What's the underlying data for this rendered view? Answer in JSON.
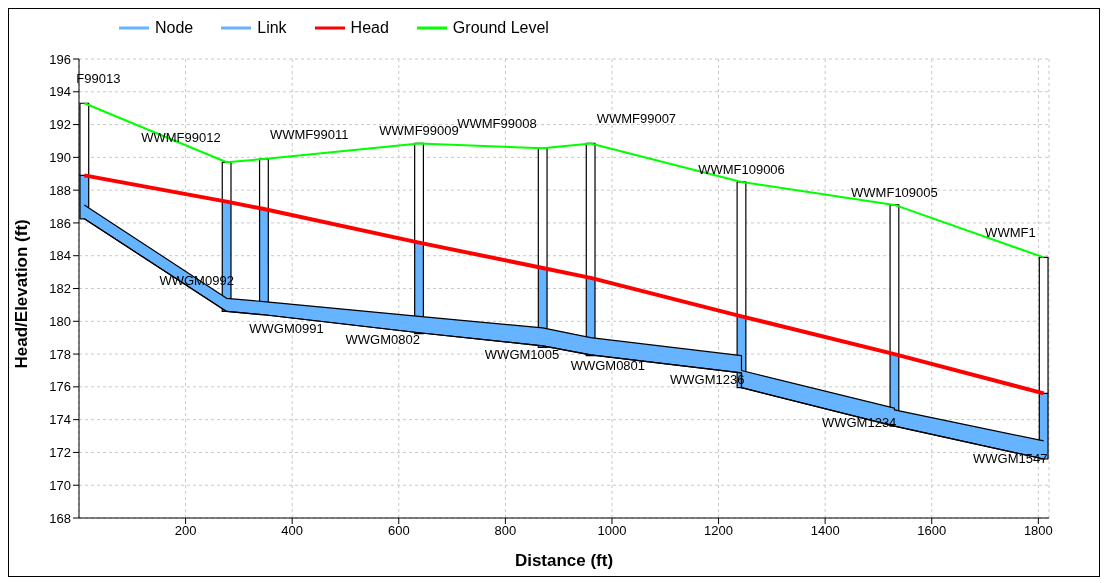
{
  "chart_data": {
    "type": "line",
    "xlabel": "Distance (ft)",
    "ylabel": "Head/Elevation (ft)",
    "xlim": [
      0,
      1820
    ],
    "xticks": [
      200,
      400,
      600,
      800,
      1000,
      1200,
      1400,
      1600,
      1800
    ],
    "ylim": [
      168,
      196
    ],
    "yticks": [
      168,
      170,
      172,
      174,
      176,
      178,
      180,
      182,
      184,
      186,
      188,
      190,
      192,
      194,
      196
    ],
    "grid": true,
    "legend": "top left",
    "line_style": "solid",
    "marker": "none",
    "series": [
      {
        "name": "Node",
        "type": "bar",
        "color": "#66b3ff",
        "x": [
          10,
          277,
          347,
          638,
          870,
          960,
          1243,
          1530,
          1810
        ],
        "base": [
          186.25,
          180.6,
          180.4,
          179.25,
          178.4,
          177.9,
          175.95,
          173.6,
          171.6
        ],
        "values": [
          2.65,
          6.7,
          6.45,
          5.55,
          4.85,
          4.75,
          4.35,
          4.4,
          4.0
        ]
      },
      {
        "type": "bar",
        "color": "#ffffff",
        "x": [
          10,
          277,
          347,
          638,
          870,
          960,
          1243,
          1530,
          1810
        ],
        "base": [
          188.9,
          187.3,
          186.85,
          184.8,
          183.25,
          182.65,
          180.3,
          178.0,
          175.6
        ],
        "values": [
          4.4,
          2.4,
          3.05,
          6.05,
          7.3,
          8.2,
          8.2,
          9.1,
          8.3
        ]
      },
      {
        "name": "Link",
        "type": "area",
        "color": "#66b3ff",
        "x": [
          10,
          277,
          277,
          347,
          347,
          638,
          638,
          870,
          870,
          960,
          960,
          1243,
          1243,
          1530,
          1530,
          1810
        ],
        "values": [
          187.1,
          181.4,
          181.4,
          181.2,
          181.2,
          180.3,
          180.3,
          179.6,
          179.6,
          179.0,
          179.0,
          177.9,
          177.0,
          174.7,
          174.6,
          172.7
        ]
      },
      {
        "type": "line",
        "color": "#000000",
        "x": [
          10,
          277,
          277,
          347,
          347,
          638,
          638,
          870,
          870,
          960,
          960,
          1243,
          1243,
          1530,
          1530,
          1810
        ],
        "values": [
          186.25,
          180.6,
          180.6,
          180.4,
          180.4,
          179.3,
          179.3,
          178.5,
          178.5,
          177.95,
          177.95,
          176.85,
          175.95,
          173.6,
          173.6,
          171.6
        ]
      },
      {
        "name": "Head",
        "color": "#ff0000",
        "x": [
          10,
          277,
          347,
          638,
          870,
          960,
          1243,
          1530,
          1810
        ],
        "values": [
          188.9,
          187.3,
          186.85,
          184.8,
          183.25,
          182.65,
          180.3,
          178.0,
          175.6
        ]
      },
      {
        "name": "Ground Level",
        "color": "#00ff00",
        "x": [
          10,
          277,
          347,
          638,
          870,
          960,
          1243,
          1530,
          1810
        ],
        "values": [
          193.3,
          189.7,
          189.9,
          190.85,
          190.55,
          190.85,
          188.5,
          187.1,
          183.9
        ]
      }
    ],
    "annotations": [
      {
        "text": "F99013",
        "x": 10,
        "y": 193.3
      },
      {
        "text": "WWMF99012",
        "x": 277,
        "y": 189.7
      },
      {
        "text": "WWMF99011",
        "x": 347,
        "y": 189.9
      },
      {
        "text": "WWMF99009",
        "x": 638,
        "y": 190.85
      },
      {
        "text": "WWMF99008",
        "x": 870,
        "y": 190.55
      },
      {
        "text": "WWMF99007",
        "x": 960,
        "y": 190.85
      },
      {
        "text": "WWMF109006",
        "x": 1243,
        "y": 188.5
      },
      {
        "text": "WWMF109005",
        "x": 1530,
        "y": 187.1
      },
      {
        "text": "WWMF1",
        "x": 1810,
        "y": 183.9
      },
      "WWGM0992",
      "WWGM0991",
      "WWGM0802",
      "WWGM1005",
      "WWGM0801",
      "WWGM1236",
      "WWGM1234",
      "WWGM1547"
    ]
  }
}
